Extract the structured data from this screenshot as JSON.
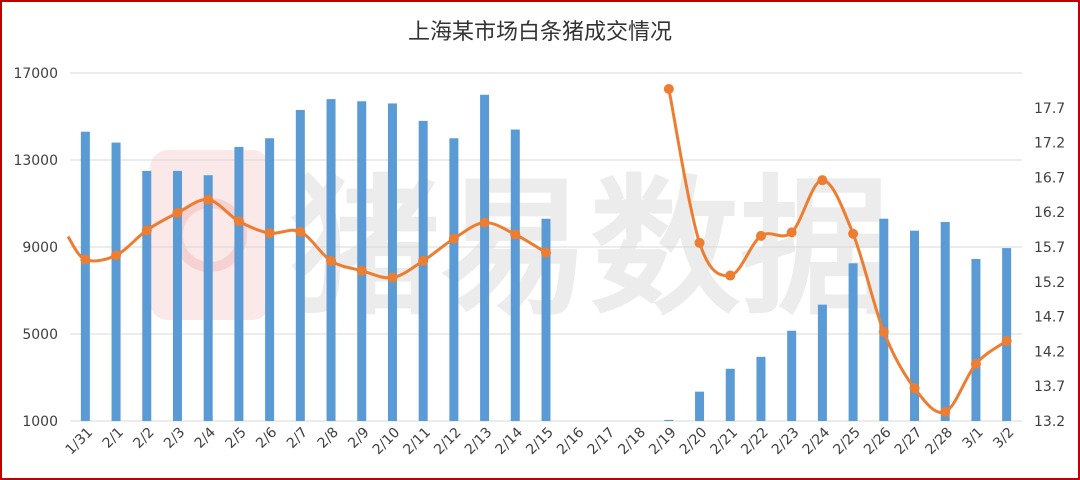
{
  "chart_data": {
    "type": "bar+line",
    "title": "上海某市场白条猪成交情况",
    "watermark_text": "猪易数据",
    "categories": [
      "1/31",
      "2/1",
      "2/2",
      "2/3",
      "2/4",
      "2/5",
      "2/6",
      "2/7",
      "2/8",
      "2/9",
      "2/10",
      "2/11",
      "2/12",
      "2/13",
      "2/14",
      "2/15",
      "2/16",
      "2/17",
      "2/18",
      "2/19",
      "2/20",
      "2/21",
      "2/22",
      "2/23",
      "2/24",
      "2/25",
      "2/26",
      "2/27",
      "2/28",
      "3/1",
      "3/2"
    ],
    "left_axis": {
      "ylim": [
        1000,
        17000
      ],
      "ticks": [
        "1000",
        "5000",
        "9000",
        "13000",
        "17000"
      ]
    },
    "right_axis": {
      "ylim": [
        13.2,
        18.2
      ],
      "ticks": [
        "13.2",
        "13.7",
        "14.2",
        "14.7",
        "15.2",
        "15.7",
        "16.2",
        "16.7",
        "17.2",
        "17.7"
      ]
    },
    "series": [
      {
        "axis": "left",
        "kind": "bar",
        "color": "#5b9bd5",
        "values": [
          14300,
          13800,
          12500,
          12500,
          12300,
          13600,
          14000,
          15300,
          15800,
          15700,
          15600,
          14800,
          14000,
          16000,
          14400,
          10300,
          null,
          null,
          null,
          1050,
          2350,
          3400,
          3950,
          5150,
          6350,
          8250,
          10300,
          9750,
          10150,
          8450,
          8950
        ]
      },
      {
        "axis": "right",
        "kind": "line",
        "color": "#ed7d31",
        "values": [
          15.52,
          15.58,
          15.94,
          16.19,
          16.38,
          16.07,
          15.9,
          15.92,
          15.5,
          15.36,
          15.26,
          15.5,
          15.82,
          16.05,
          15.88,
          15.62,
          null,
          null,
          null,
          17.97,
          15.76,
          15.29,
          15.86,
          15.91,
          16.66,
          15.89,
          14.48,
          13.67,
          13.33,
          14.02,
          14.35
        ],
        "left_edge_value": 15.85
      }
    ]
  }
}
